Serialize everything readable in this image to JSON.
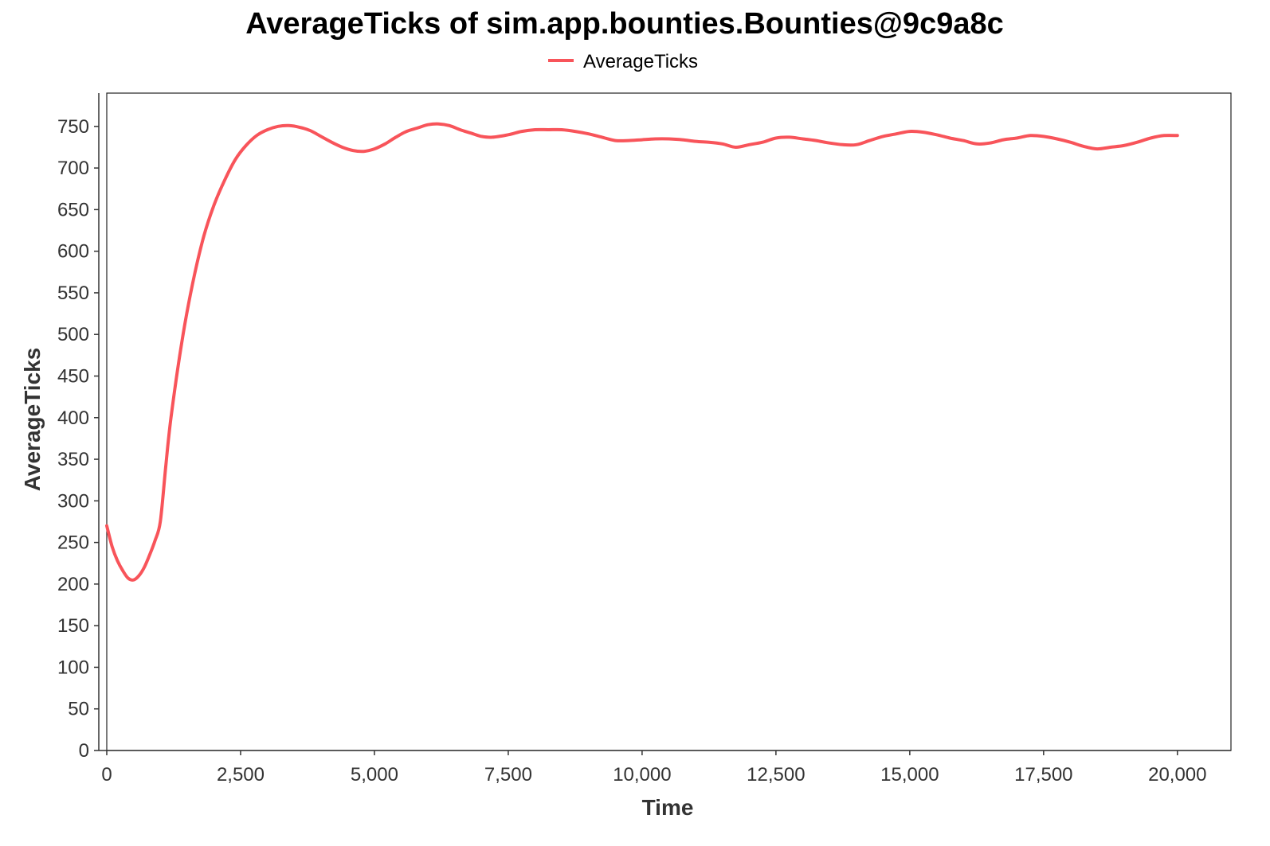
{
  "chart_data": {
    "type": "line",
    "title": "AverageTicks of sim.app.bounties.Bounties@9c9a8c",
    "xlabel": "Time",
    "ylabel": "AverageTicks",
    "xlim": [
      0,
      21000
    ],
    "ylim": [
      0,
      790
    ],
    "xticks": [
      0,
      2500,
      5000,
      7500,
      10000,
      12500,
      15000,
      17500,
      20000
    ],
    "xtick_labels": [
      "0",
      "2,500",
      "5,000",
      "7,500",
      "10,000",
      "12,500",
      "15,000",
      "17,500",
      "20,000"
    ],
    "yticks": [
      0,
      50,
      100,
      150,
      200,
      250,
      300,
      350,
      400,
      450,
      500,
      550,
      600,
      650,
      700,
      750
    ],
    "ytick_labels": [
      "0",
      "50",
      "100",
      "150",
      "200",
      "250",
      "300",
      "350",
      "400",
      "450",
      "500",
      "550",
      "600",
      "650",
      "700",
      "750"
    ],
    "grid": false,
    "legend_position": "top-center",
    "series": [
      {
        "name": "AverageTicks",
        "color": "#f8545a",
        "x": [
          0,
          100,
          200,
          300,
          400,
          500,
          600,
          700,
          800,
          900,
          1000,
          1100,
          1200,
          1400,
          1600,
          1800,
          2000,
          2200,
          2400,
          2600,
          2800,
          3000,
          3200,
          3400,
          3600,
          3800,
          4000,
          4200,
          4400,
          4600,
          4800,
          5000,
          5200,
          5400,
          5600,
          5800,
          6000,
          6200,
          6400,
          6600,
          6800,
          7000,
          7200,
          7500,
          7750,
          8000,
          8250,
          8500,
          8750,
          9000,
          9250,
          9500,
          9750,
          10000,
          10250,
          10500,
          10750,
          11000,
          11250,
          11500,
          11750,
          12000,
          12250,
          12500,
          12750,
          13000,
          13250,
          13500,
          13750,
          14000,
          14250,
          14500,
          14750,
          15000,
          15250,
          15500,
          15750,
          16000,
          16250,
          16500,
          16750,
          17000,
          17250,
          17500,
          17750,
          18000,
          18250,
          18500,
          18750,
          19000,
          19250,
          19500,
          19750,
          20000
        ],
        "values": [
          270,
          245,
          228,
          216,
          207,
          205,
          210,
          220,
          235,
          252,
          275,
          340,
          400,
          490,
          560,
          615,
          655,
          685,
          710,
          727,
          739,
          746,
          750,
          751,
          749,
          745,
          738,
          731,
          725,
          721,
          720,
          723,
          729,
          737,
          744,
          748,
          752,
          753,
          751,
          746,
          742,
          738,
          737,
          740,
          744,
          746,
          746,
          746,
          744,
          741,
          737,
          733,
          733,
          734,
          735,
          735,
          734,
          732,
          731,
          729,
          725,
          728,
          731,
          736,
          737,
          735,
          733,
          730,
          728,
          728,
          733,
          738,
          741,
          744,
          743,
          740,
          736,
          733,
          729,
          730,
          734,
          736,
          739,
          738,
          735,
          731,
          726,
          723,
          725,
          727,
          731,
          736,
          739,
          739
        ]
      }
    ]
  }
}
